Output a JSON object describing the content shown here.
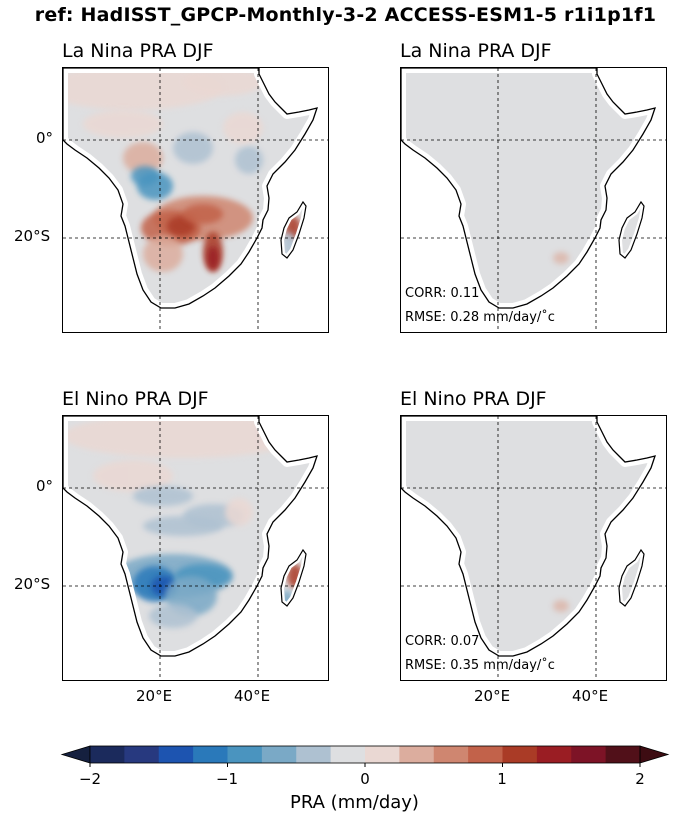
{
  "figure": {
    "title": "ref: HadISST_GPCP-Monthly-3-2 ACCESS-ESM1-5 r1i1p1f1"
  },
  "panels": [
    {
      "title": "La Nina PRA DJF",
      "field": "ref-lanina"
    },
    {
      "title": "La Nina PRA DJF",
      "field": "model",
      "corr": "CORR: 0.11",
      "rmse": "RMSE: 0.28 mm/day/$^\\circ$C"
    },
    {
      "title": "El Nino PRA DJF",
      "field": "ref-elnino"
    },
    {
      "title": "El Nino PRA DJF",
      "field": "model",
      "corr": "CORR: 0.07",
      "rmse": "RMSE: 0.35 mm/day/$^\\circ$C"
    }
  ],
  "panel_stats_display": [
    {
      "corr": "",
      "rmse": ""
    },
    {
      "corr": "CORR: 0.11",
      "rmse": "RMSE: 0.28 mm/day/˚c"
    },
    {
      "corr": "",
      "rmse": ""
    },
    {
      "corr": "CORR: 0.07",
      "rmse": "RMSE: 0.35 mm/day/˚c"
    }
  ],
  "axes": {
    "lat_ticks": [
      "0°",
      "20°S"
    ],
    "lon_ticks": [
      "20°E",
      "40°E"
    ],
    "gridlines": "dashed"
  },
  "colorbar": {
    "label": "PRA (mm/day)",
    "ticks": [
      "−2",
      "−1",
      "0",
      "1",
      "2"
    ],
    "tick_values": [
      -2,
      -1,
      0,
      1,
      2
    ],
    "range": [
      -2,
      2
    ],
    "extend": "both",
    "colors": [
      "#1b2a5c",
      "#27397f",
      "#1d54b0",
      "#2a79ba",
      "#4a94bf",
      "#7aa9c6",
      "#aec1d1",
      "#dedfe1",
      "#ead8d3",
      "#dcad9e",
      "#cf8670",
      "#c2624a",
      "#aa3b26",
      "#9a1d23",
      "#7d1326",
      "#511019"
    ],
    "under_color": "#15203f",
    "over_color": "#3d0c12"
  },
  "colors": {
    "land_neutral": "#dedfe1",
    "coastline": "#000000"
  }
}
